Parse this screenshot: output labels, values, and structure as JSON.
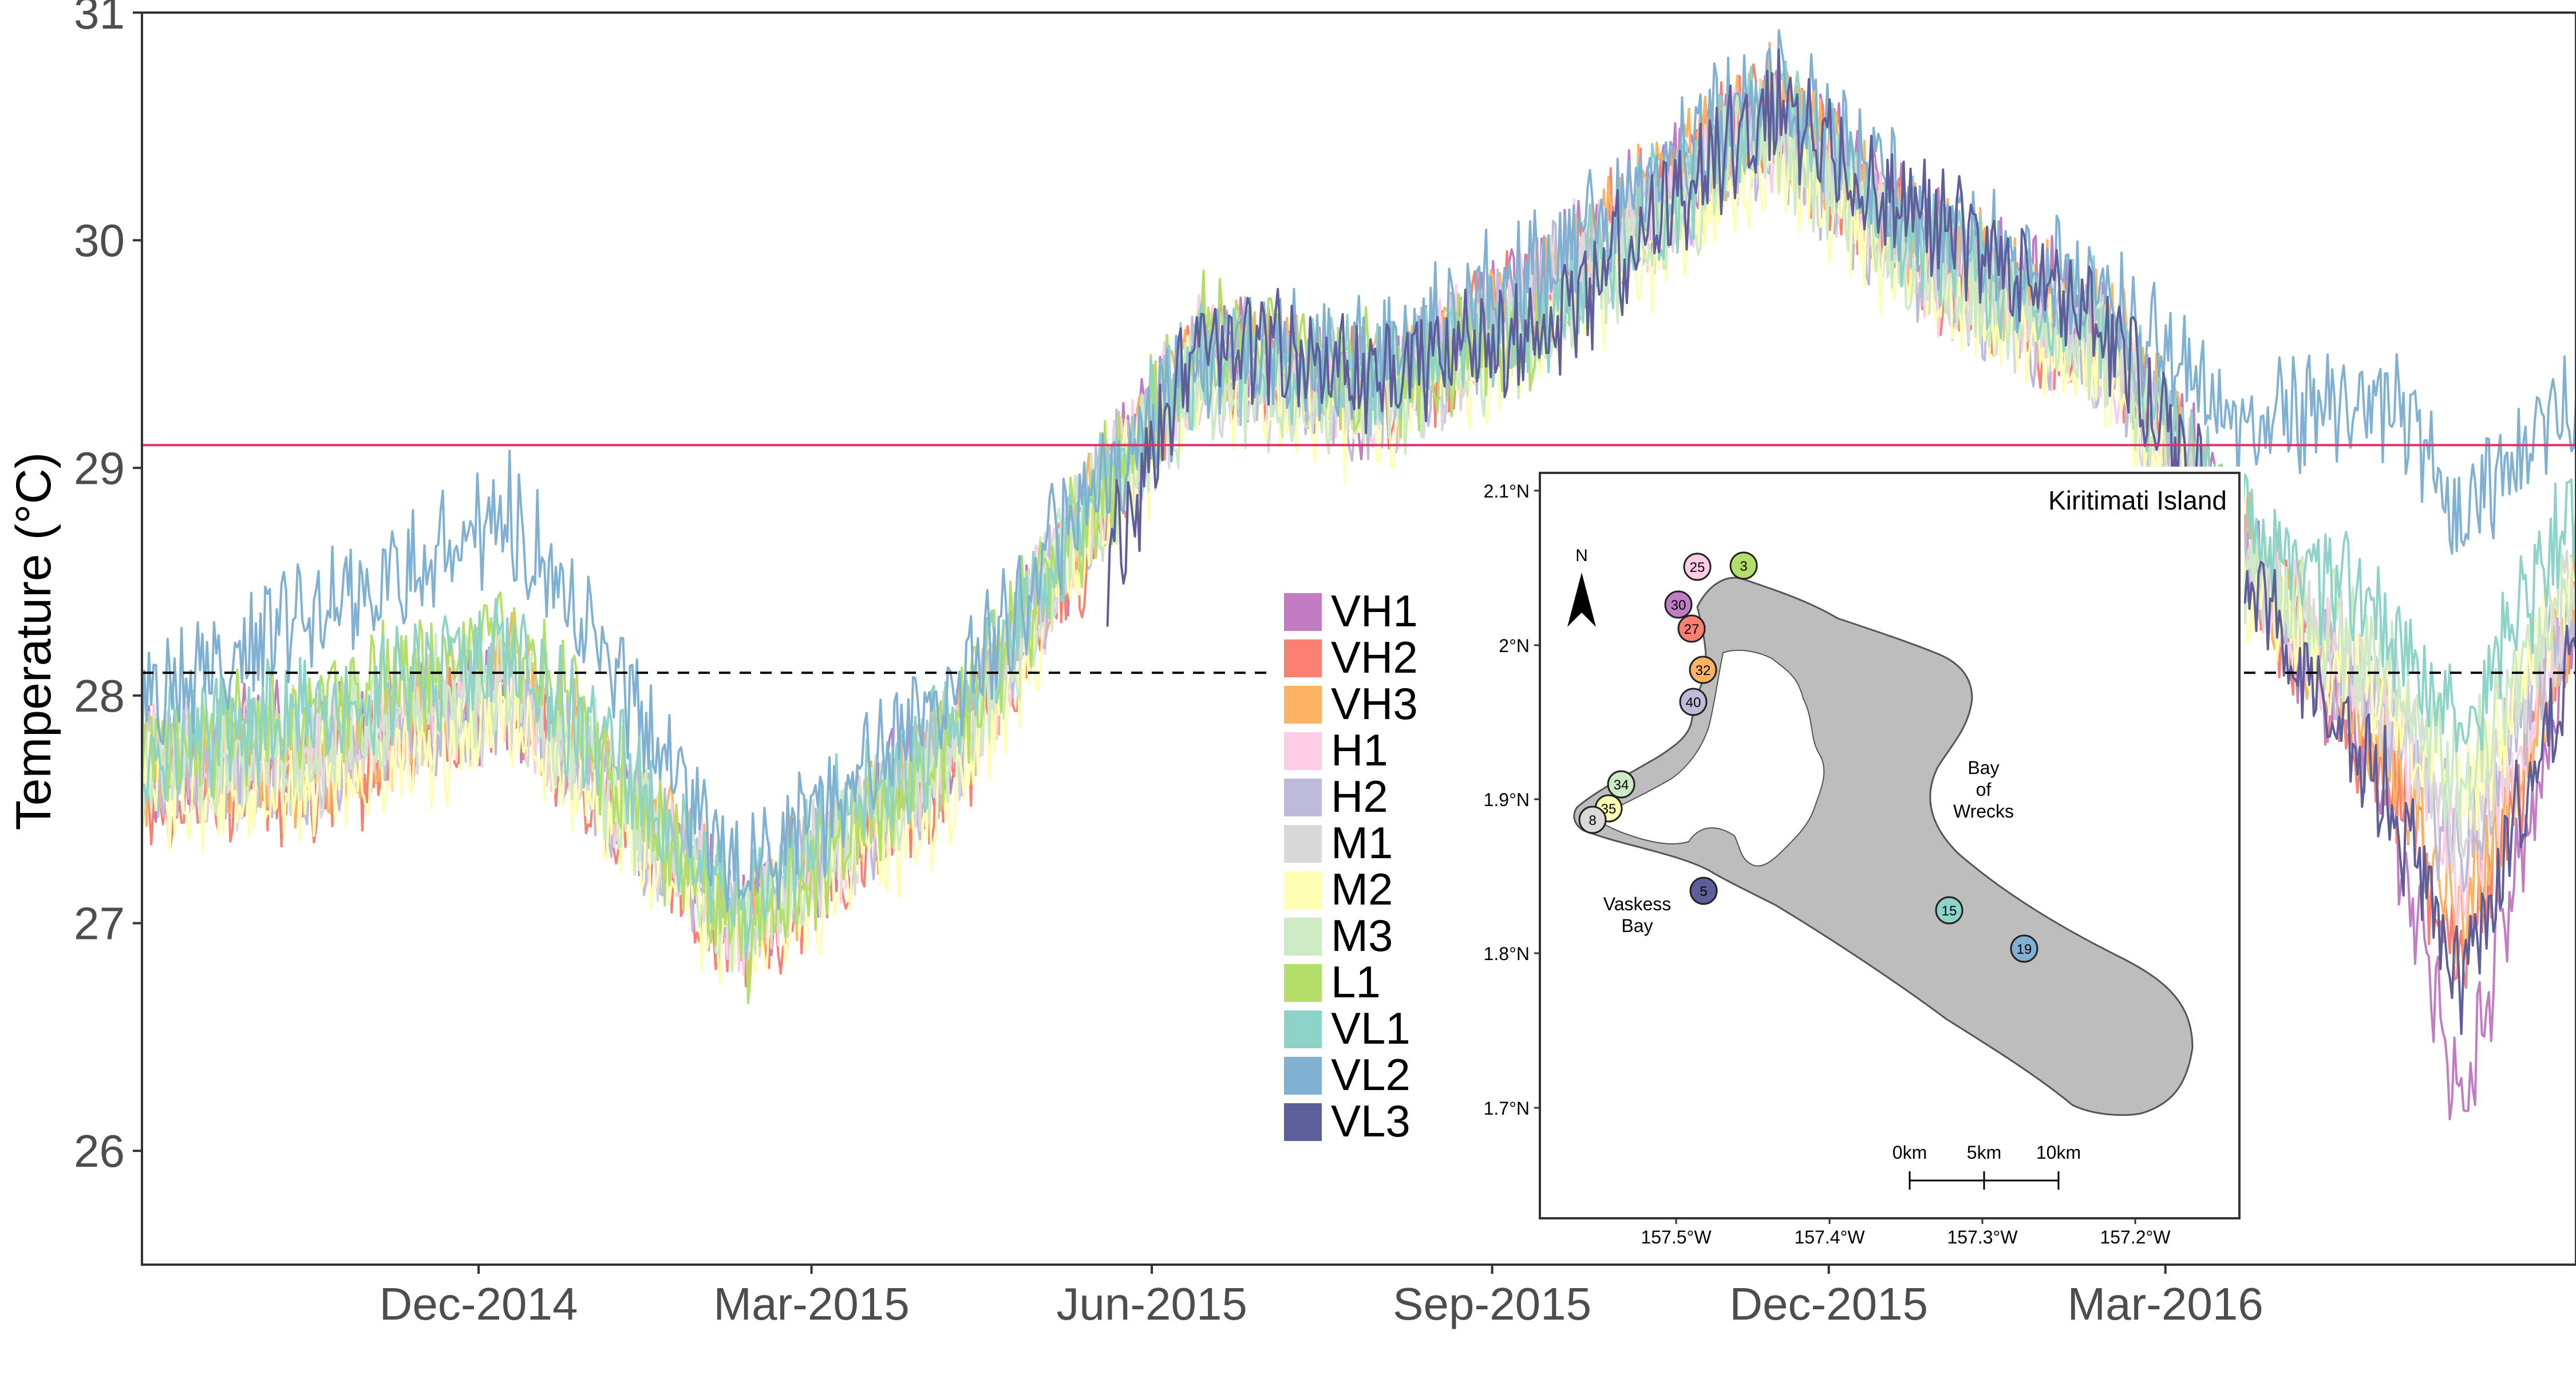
{
  "chart_data": {
    "type": "line",
    "title": "",
    "xlabel": "",
    "ylabel": "Temperature (°C)",
    "xlim": [
      "2014-09-01",
      "2016-06-20"
    ],
    "ylim": [
      25.5,
      31.0
    ],
    "x_ticks": [
      "2014-12-01",
      "2015-03-01",
      "2015-06-01",
      "2015-09-01",
      "2015-12-01",
      "2016-03-01"
    ],
    "x_tick_labels": [
      "Dec-2014",
      "Mar-2015",
      "Jun-2015",
      "Sep-2015",
      "Dec-2015",
      "Mar-2016"
    ],
    "y_ticks": [
      26,
      27,
      28,
      29,
      30,
      31
    ],
    "y_tick_labels": [
      "26",
      "27",
      "28",
      "29",
      "30",
      "31"
    ],
    "grid": false,
    "legend_position": "center-right",
    "reference_lines": [
      {
        "y": 29.1,
        "style": "solid",
        "color": "#d6336c"
      },
      {
        "y": 28.1,
        "style": "dashed",
        "color": "#000000"
      }
    ],
    "series": [
      {
        "name": "VH1",
        "color": "#c17cc4",
        "points": [
          [
            "2014-09-01",
            27.7
          ],
          [
            "2014-10-15",
            27.8
          ],
          [
            "2014-12-10",
            28.0
          ],
          [
            "2015-02-10",
            27.0
          ],
          [
            "2015-04-10",
            27.8
          ],
          [
            "2015-05-15",
            28.8
          ],
          [
            "2015-06-15",
            29.5
          ],
          [
            "2015-08-01",
            29.3
          ],
          [
            "2015-09-15",
            29.8
          ],
          [
            "2015-11-15",
            30.6
          ],
          [
            "2015-12-25",
            30.0
          ],
          [
            "2016-02-15",
            29.6
          ],
          [
            "2016-03-20",
            28.7
          ],
          [
            "2016-04-30",
            27.6
          ],
          [
            "2016-05-20",
            26.2
          ],
          [
            "2016-06-20",
            28.3
          ]
        ]
      },
      {
        "name": "VH2",
        "color": "#fa8072",
        "points": [
          [
            "2014-09-01",
            27.6
          ],
          [
            "2014-10-15",
            27.6
          ],
          [
            "2014-12-10",
            28.0
          ],
          [
            "2015-02-10",
            26.9
          ],
          [
            "2015-04-10",
            27.7
          ],
          [
            "2015-05-15",
            28.7
          ],
          [
            "2015-06-15",
            29.5
          ],
          [
            "2015-08-01",
            29.3
          ],
          [
            "2015-09-15",
            29.8
          ],
          [
            "2015-11-15",
            30.6
          ],
          [
            "2015-12-25",
            29.9
          ],
          [
            "2016-02-15",
            29.5
          ],
          [
            "2016-03-20",
            28.6
          ],
          [
            "2016-04-30",
            27.7
          ],
          [
            "2016-05-20",
            26.8
          ],
          [
            "2016-06-20",
            28.4
          ]
        ]
      },
      {
        "name": "VH3",
        "color": "#fdb462",
        "points": [
          [
            "2014-09-01",
            27.7
          ],
          [
            "2014-10-15",
            27.7
          ],
          [
            "2014-12-10",
            28.1
          ],
          [
            "2015-02-10",
            27.0
          ],
          [
            "2015-04-10",
            27.8
          ],
          [
            "2015-05-15",
            28.8
          ],
          [
            "2015-06-15",
            29.5
          ],
          [
            "2015-08-01",
            29.4
          ],
          [
            "2015-09-15",
            29.8
          ],
          [
            "2015-11-15",
            30.6
          ],
          [
            "2015-12-25",
            30.0
          ],
          [
            "2016-02-15",
            29.6
          ],
          [
            "2016-03-20",
            28.7
          ],
          [
            "2016-04-30",
            27.8
          ],
          [
            "2016-05-20",
            27.0
          ],
          [
            "2016-06-20",
            28.4
          ]
        ]
      },
      {
        "name": "H1",
        "color": "#fccde5",
        "points": [
          [
            "2014-09-01",
            27.7
          ],
          [
            "2014-10-15",
            27.7
          ],
          [
            "2014-12-10",
            28.0
          ],
          [
            "2015-02-10",
            27.0
          ],
          [
            "2015-04-10",
            27.8
          ],
          [
            "2015-05-15",
            28.8
          ],
          [
            "2015-06-15",
            29.5
          ],
          [
            "2015-08-01",
            29.3
          ],
          [
            "2015-09-15",
            29.8
          ],
          [
            "2015-11-15",
            30.5
          ],
          [
            "2015-12-25",
            29.9
          ],
          [
            "2016-02-15",
            29.5
          ],
          [
            "2016-03-20",
            28.6
          ],
          [
            "2016-04-30",
            27.9
          ],
          [
            "2016-05-20",
            27.2
          ],
          [
            "2016-06-20",
            28.4
          ]
        ]
      },
      {
        "name": "H2",
        "color": "#bebada",
        "points": [
          [
            "2014-09-01",
            27.7
          ],
          [
            "2014-10-15",
            27.7
          ],
          [
            "2014-12-10",
            28.0
          ],
          [
            "2015-02-10",
            27.0
          ],
          [
            "2015-04-10",
            27.8
          ],
          [
            "2015-05-15",
            28.8
          ],
          [
            "2015-06-15",
            29.5
          ],
          [
            "2015-08-01",
            29.3
          ],
          [
            "2015-09-15",
            29.8
          ],
          [
            "2015-11-15",
            30.5
          ],
          [
            "2015-12-25",
            29.9
          ],
          [
            "2016-02-15",
            29.5
          ],
          [
            "2016-03-20",
            28.6
          ],
          [
            "2016-04-30",
            27.9
          ],
          [
            "2016-05-20",
            27.3
          ],
          [
            "2016-06-20",
            28.4
          ]
        ]
      },
      {
        "name": "M1",
        "color": "#d9d9d9",
        "points": [
          [
            "2014-09-01",
            27.7
          ],
          [
            "2014-10-15",
            27.7
          ],
          [
            "2014-12-10",
            28.0
          ],
          [
            "2015-02-10",
            27.0
          ],
          [
            "2015-04-10",
            27.8
          ],
          [
            "2015-05-15",
            28.8
          ],
          [
            "2015-06-15",
            29.4
          ],
          [
            "2015-08-01",
            29.3
          ],
          [
            "2015-09-15",
            29.7
          ],
          [
            "2015-11-15",
            30.5
          ],
          [
            "2015-12-25",
            29.9
          ],
          [
            "2016-02-15",
            29.5
          ],
          [
            "2016-03-20",
            28.6
          ],
          [
            "2016-04-30",
            28.0
          ],
          [
            "2016-05-20",
            27.4
          ],
          [
            "2016-06-20",
            28.5
          ]
        ]
      },
      {
        "name": "M2",
        "color": "#ffffb3",
        "points": [
          [
            "2014-09-01",
            27.6
          ],
          [
            "2014-10-15",
            27.6
          ],
          [
            "2014-12-10",
            27.9
          ],
          [
            "2015-02-10",
            26.9
          ],
          [
            "2015-04-10",
            27.6
          ],
          [
            "2015-05-15",
            28.7
          ],
          [
            "2015-06-15",
            29.4
          ],
          [
            "2015-08-01",
            29.2
          ],
          [
            "2015-09-15",
            29.6
          ],
          [
            "2015-11-15",
            30.4
          ],
          [
            "2015-12-25",
            29.8
          ],
          [
            "2016-02-15",
            29.4
          ],
          [
            "2016-03-20",
            28.5
          ],
          [
            "2016-04-30",
            28.0
          ],
          [
            "2016-05-20",
            27.5
          ],
          [
            "2016-06-20",
            28.5
          ]
        ]
      },
      {
        "name": "M3",
        "color": "#ccebc5",
        "points": [
          [
            "2014-09-01",
            27.7
          ],
          [
            "2014-10-15",
            27.8
          ],
          [
            "2014-12-10",
            28.1
          ],
          [
            "2015-02-10",
            27.0
          ],
          [
            "2015-04-10",
            27.8
          ],
          [
            "2015-05-15",
            28.8
          ],
          [
            "2015-06-15",
            29.4
          ],
          [
            "2015-08-01",
            29.3
          ],
          [
            "2015-09-15",
            29.6
          ],
          [
            "2015-11-15",
            30.5
          ],
          [
            "2015-12-25",
            29.9
          ],
          [
            "2016-02-15",
            29.5
          ],
          [
            "2016-03-20",
            28.6
          ],
          [
            "2016-04-30",
            28.1
          ],
          [
            "2016-05-20",
            27.6
          ],
          [
            "2016-06-20",
            28.6
          ]
        ]
      },
      {
        "name": "L1",
        "color": "#b3de69",
        "points": [
          [
            "2014-09-01",
            27.8
          ],
          [
            "2014-10-15",
            27.9
          ],
          [
            "2014-12-10",
            28.3
          ],
          [
            "2015-02-10",
            26.9
          ],
          [
            "2015-04-10",
            27.9
          ],
          [
            "2015-05-15",
            28.8
          ],
          [
            "2015-06-15",
            29.6
          ],
          [
            "2015-08-01",
            29.4
          ],
          [
            "2015-09-15",
            29.6
          ]
        ]
      },
      {
        "name": "VL1",
        "color": "#8dd3c7",
        "points": [
          [
            "2014-09-01",
            27.8
          ],
          [
            "2014-10-15",
            27.9
          ],
          [
            "2014-12-10",
            28.2
          ],
          [
            "2015-02-10",
            27.1
          ],
          [
            "2015-04-10",
            27.9
          ],
          [
            "2015-05-15",
            28.8
          ],
          [
            "2015-06-15",
            29.5
          ],
          [
            "2015-08-01",
            29.4
          ],
          [
            "2015-09-15",
            29.7
          ],
          [
            "2015-11-15",
            30.6
          ],
          [
            "2015-12-25",
            30.0
          ],
          [
            "2016-02-15",
            29.6
          ],
          [
            "2016-03-20",
            28.8
          ],
          [
            "2016-04-30",
            28.3
          ],
          [
            "2016-05-20",
            27.9
          ],
          [
            "2016-06-20",
            28.8
          ]
        ]
      },
      {
        "name": "VL2",
        "color": "#80b1d3",
        "points": [
          [
            "2014-09-01",
            28.0
          ],
          [
            "2014-10-15",
            28.3
          ],
          [
            "2014-12-10",
            28.8
          ],
          [
            "2015-02-10",
            27.2
          ],
          [
            "2015-04-10",
            28.0
          ],
          [
            "2015-05-15",
            28.9
          ],
          [
            "2015-06-15",
            29.5
          ],
          [
            "2015-08-01",
            29.5
          ],
          [
            "2015-09-15",
            29.9
          ],
          [
            "2015-11-15",
            30.7
          ],
          [
            "2015-12-25",
            30.1
          ],
          [
            "2016-02-15",
            29.7
          ],
          [
            "2016-03-20",
            29.2
          ],
          [
            "2016-04-30",
            29.3
          ],
          [
            "2016-05-20",
            28.8
          ],
          [
            "2016-06-20",
            29.3
          ]
        ]
      },
      {
        "name": "VL3",
        "color": "#5e5e9a",
        "points": [
          [
            "2015-05-20",
            28.6
          ],
          [
            "2015-06-15",
            29.6
          ],
          [
            "2015-08-01",
            29.4
          ],
          [
            "2015-09-15",
            29.6
          ],
          [
            "2015-11-15",
            30.6
          ],
          [
            "2015-12-25",
            30.1
          ],
          [
            "2016-02-15",
            29.6
          ],
          [
            "2016-03-20",
            28.6
          ],
          [
            "2016-04-30",
            27.6
          ],
          [
            "2016-05-20",
            26.7
          ],
          [
            "2016-06-20",
            28.2
          ]
        ]
      }
    ]
  },
  "inset_map": {
    "title": "Kiritimati Island",
    "north_label": "N",
    "lat_labels": [
      "2.1°N",
      "2°N",
      "1.9°N",
      "1.8°N",
      "1.7°N"
    ],
    "lon_labels": [
      "157.5°W",
      "157.4°W",
      "157.3°W",
      "157.2°W"
    ],
    "scale_labels": [
      "0km",
      "5km",
      "10km"
    ],
    "place_labels": [
      {
        "key": "bay_of_wrecks",
        "lines": [
          "Bay",
          "of",
          "Wrecks"
        ]
      },
      {
        "key": "vaskess_bay",
        "lines": [
          "Vaskess",
          "Bay"
        ]
      }
    ],
    "sites": [
      {
        "label": "25",
        "group": "H1"
      },
      {
        "label": "3",
        "group": "L1"
      },
      {
        "label": "30",
        "group": "VH1"
      },
      {
        "label": "27",
        "group": "VH2"
      },
      {
        "label": "32",
        "group": "VH3"
      },
      {
        "label": "40",
        "group": "H2"
      },
      {
        "label": "34",
        "group": "M3"
      },
      {
        "label": "35",
        "group": "M2"
      },
      {
        "label": "8",
        "group": "M1"
      },
      {
        "label": "5",
        "group": "VL3"
      },
      {
        "label": "15",
        "group": "VL1"
      },
      {
        "label": "19",
        "group": "VL2"
      }
    ]
  }
}
